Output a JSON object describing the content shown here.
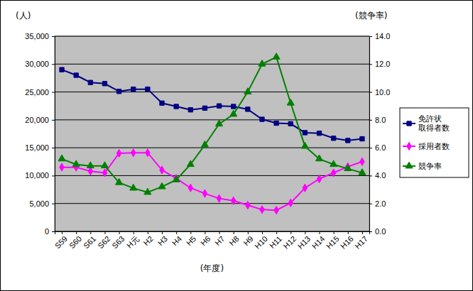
{
  "chart_data": {
    "type": "line",
    "y_label": "(人)",
    "y2_label": "(競争率)",
    "x_label": "(年度)",
    "categories": [
      "S59",
      "S60",
      "S61",
      "S62",
      "S63",
      "H元",
      "H2",
      "H3",
      "H4",
      "H5",
      "H6",
      "H7",
      "H8",
      "H9",
      "H10",
      "H11",
      "H12",
      "H13",
      "H14",
      "H15",
      "H16",
      "H17"
    ],
    "series": [
      {
        "name": "免許状取得者数",
        "color": "#000080",
        "marker": "square",
        "values": [
          29000,
          28000,
          26700,
          26500,
          25100,
          25500,
          25500,
          23000,
          22400,
          21800,
          22100,
          22500,
          22400,
          21900,
          20100,
          19400,
          19300,
          17700,
          17600,
          16700,
          16300,
          16600
        ]
      },
      {
        "name": "採用者数",
        "color": "#FF00FF",
        "marker": "diamond",
        "values": [
          11500,
          11500,
          10800,
          10500,
          14000,
          14100,
          14100,
          11000,
          9500,
          7800,
          6800,
          5900,
          5500,
          4700,
          3900,
          3800,
          5100,
          7800,
          9400,
          10500,
          11600,
          12500
        ]
      },
      {
        "name": "競争率",
        "color": "#008000",
        "marker": "triangle",
        "axis": "y2",
        "values": [
          5.2,
          4.8,
          4.7,
          4.7,
          3.5,
          3.1,
          2.8,
          3.2,
          3.7,
          4.8,
          6.2,
          7.7,
          8.4,
          10.0,
          12.0,
          12.5,
          9.2,
          6.1,
          5.2,
          4.8,
          4.5,
          4.2
        ]
      }
    ],
    "ylim": [
      0,
      35000
    ],
    "yticks": [
      0,
      {
        "value": 5000,
        "label": "5,000"
      },
      {
        "value": 10000,
        "label": "10,000"
      },
      {
        "value": 15000,
        "label": "15,000"
      },
      {
        "value": 20000,
        "label": "20,000"
      },
      {
        "value": 25000,
        "label": "25,000"
      },
      {
        "value": 30000,
        "label": "30,000"
      },
      {
        "value": 35000,
        "label": "35,000"
      }
    ],
    "y2lim": [
      0,
      14
    ],
    "y2ticks": [
      {
        "value": 0,
        "label": "0.0"
      },
      {
        "value": 2,
        "label": "2.0"
      },
      {
        "value": 4,
        "label": "4.0"
      },
      {
        "value": 6,
        "label": "6.0"
      },
      {
        "value": 8,
        "label": "8.0"
      },
      {
        "value": 10,
        "label": "10.0"
      },
      {
        "value": 12,
        "label": "12.0"
      },
      {
        "value": 14,
        "label": "14.0"
      }
    ],
    "grid": true,
    "legend": "right"
  }
}
